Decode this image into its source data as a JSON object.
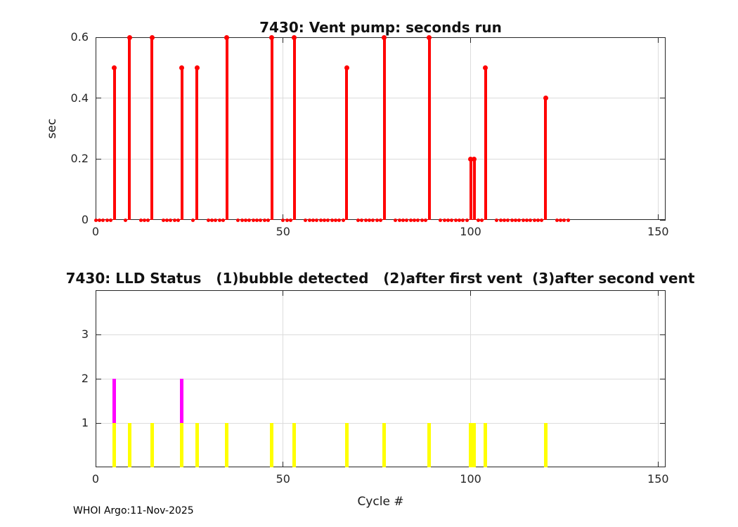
{
  "figure": {
    "footer": "WHOI Argo:11-Nov-2025",
    "background": "#ffffff",
    "axis_color": "#262626",
    "grid_color": "#dcdcdc"
  },
  "chart_data": [
    {
      "type": "stem",
      "title": "7430: Vent pump: seconds run",
      "ylabel": "sec",
      "xlim": [
        0,
        152
      ],
      "ylim": [
        0,
        0.6
      ],
      "xticks": [
        0,
        50,
        100,
        150
      ],
      "yticks": [
        0,
        0.2,
        0.4,
        0.6
      ],
      "grid": true,
      "legend_position": "none",
      "stem_color": "#ff0000",
      "baseline": {
        "from": 0,
        "to": 126,
        "value": 0
      },
      "missing_cycles": [
        6,
        7,
        10,
        11,
        16,
        17,
        24,
        25,
        28,
        29,
        36,
        37,
        48,
        49,
        54,
        55,
        68,
        69,
        78,
        79,
        90,
        91,
        105,
        106,
        121,
        122
      ],
      "spikes": [
        {
          "cycle": 5,
          "sec": 0.5
        },
        {
          "cycle": 9,
          "sec": 0.6
        },
        {
          "cycle": 15,
          "sec": 0.6
        },
        {
          "cycle": 23,
          "sec": 0.5
        },
        {
          "cycle": 27,
          "sec": 0.5
        },
        {
          "cycle": 35,
          "sec": 0.6
        },
        {
          "cycle": 47,
          "sec": 0.6
        },
        {
          "cycle": 53,
          "sec": 0.6
        },
        {
          "cycle": 67,
          "sec": 0.5
        },
        {
          "cycle": 77,
          "sec": 0.6
        },
        {
          "cycle": 89,
          "sec": 0.6
        },
        {
          "cycle": 100,
          "sec": 0.2
        },
        {
          "cycle": 101,
          "sec": 0.2
        },
        {
          "cycle": 104,
          "sec": 0.5
        },
        {
          "cycle": 120,
          "sec": 0.4
        }
      ]
    },
    {
      "type": "bar",
      "title": "7430: LLD Status   (1)bubble detected   (2)after first vent  (3)after second vent",
      "xlabel": "Cycle #",
      "xlim": [
        0,
        152
      ],
      "ylim": [
        0,
        4
      ],
      "xticks": [
        0,
        50,
        100,
        150
      ],
      "yticks": [
        1,
        2,
        3
      ],
      "grid": true,
      "legend_position": "none",
      "status_colors": {
        "1": "#ffff00",
        "2": "#ff00ff"
      },
      "bars": [
        {
          "cycle": 5,
          "statuses": [
            1,
            2
          ]
        },
        {
          "cycle": 9,
          "statuses": [
            1
          ]
        },
        {
          "cycle": 15,
          "statuses": [
            1
          ]
        },
        {
          "cycle": 23,
          "statuses": [
            1,
            2
          ]
        },
        {
          "cycle": 27,
          "statuses": [
            1
          ]
        },
        {
          "cycle": 35,
          "statuses": [
            1
          ]
        },
        {
          "cycle": 47,
          "statuses": [
            1
          ]
        },
        {
          "cycle": 53,
          "statuses": [
            1
          ]
        },
        {
          "cycle": 67,
          "statuses": [
            1
          ]
        },
        {
          "cycle": 77,
          "statuses": [
            1
          ]
        },
        {
          "cycle": 89,
          "statuses": [
            1
          ]
        },
        {
          "cycle": 100,
          "statuses": [
            1
          ]
        },
        {
          "cycle": 101,
          "statuses": [
            1
          ]
        },
        {
          "cycle": 104,
          "statuses": [
            1
          ]
        },
        {
          "cycle": 120,
          "statuses": [
            1
          ]
        }
      ]
    }
  ]
}
